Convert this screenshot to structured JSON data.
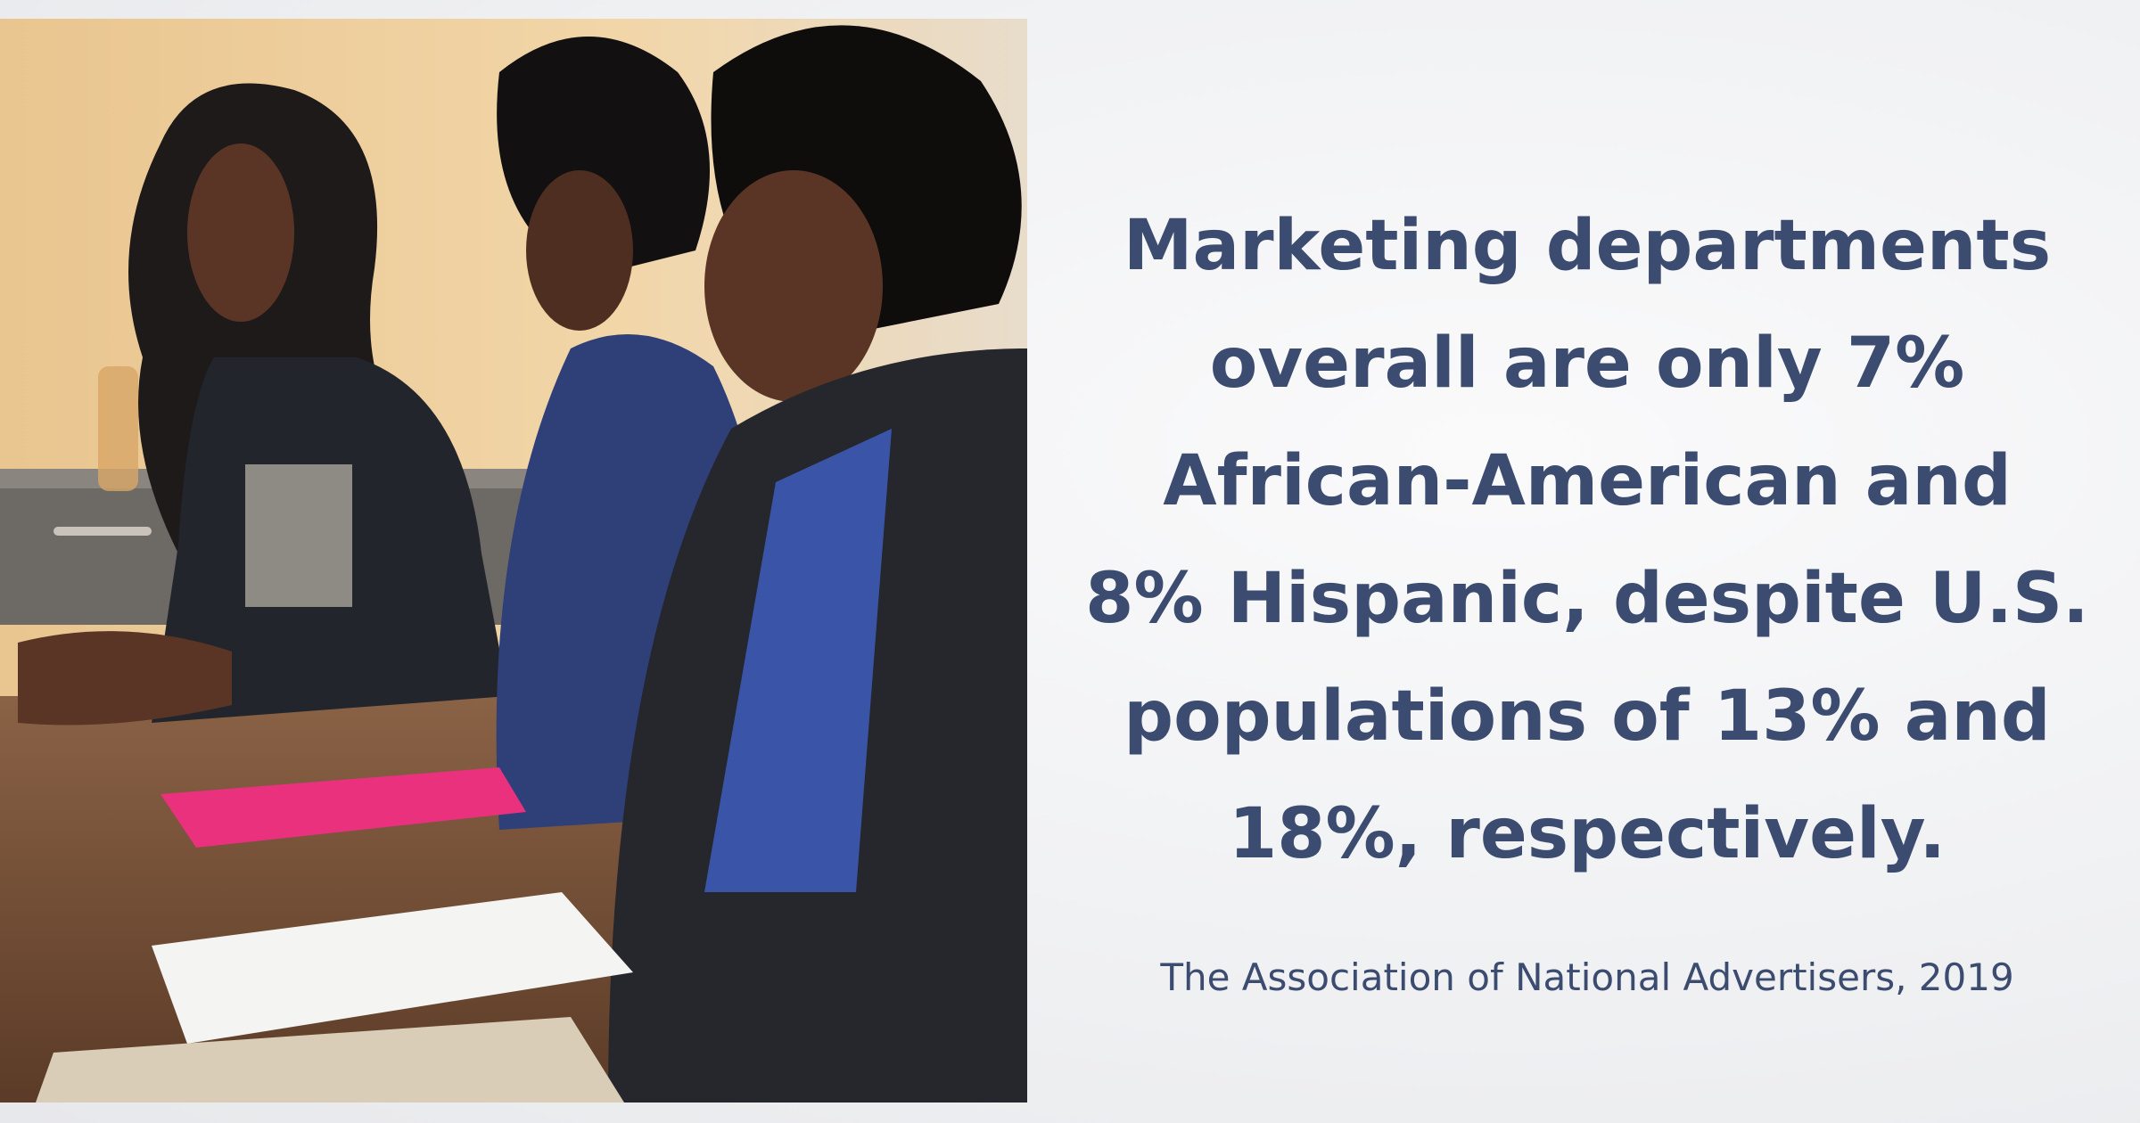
{
  "quote": {
    "lines": [
      "Marketing departments",
      "overall are only 7%",
      "African-American and",
      "8% Hispanic, despite U.S.",
      "populations of 13% and",
      "18%, respectively."
    ]
  },
  "source": "The Association of National Advertisers, 2019"
}
